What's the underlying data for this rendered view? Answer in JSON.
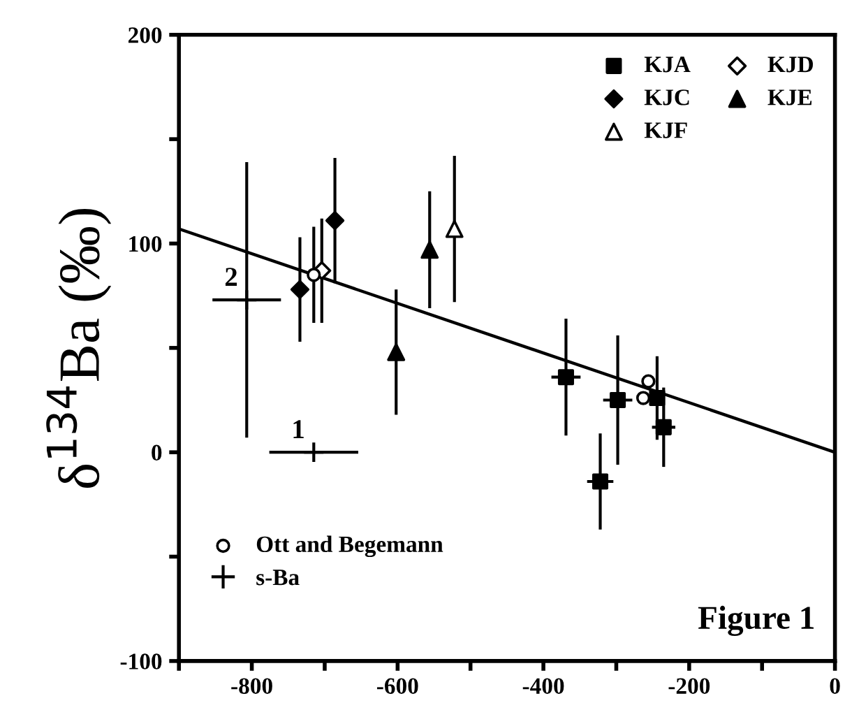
{
  "chart_data": {
    "type": "scatter",
    "ylabel": "δ$^{134}$Ba (‰)",
    "xlim": [
      -900,
      0
    ],
    "ylim": [
      -100,
      200
    ],
    "xticks": [
      {
        "value": -900,
        "label": null
      },
      -800,
      {
        "value": -700,
        "label": null
      },
      -600,
      {
        "value": -500,
        "label": null
      },
      -400,
      {
        "value": -300,
        "label": null
      },
      -200,
      {
        "value": -100,
        "label": null
      },
      0
    ],
    "yticks": [
      -100,
      {
        "value": -50,
        "label": null
      },
      0,
      {
        "value": 50,
        "label": null
      },
      100,
      {
        "value": 150,
        "label": null
      },
      200
    ],
    "grid": false,
    "legend": "top right",
    "annotations": [
      "Figure 1",
      {
        "text": "1",
        "x": -715,
        "y": 0
      },
      {
        "text": "2",
        "x": -807,
        "y": 73
      }
    ],
    "series": [
      {
        "name": "KJA",
        "color": "#000000",
        "marker": "square",
        "x": [
          -369,
          -298,
          -322,
          -244,
          -235
        ],
        "values": [
          36,
          25,
          -14,
          26,
          12
        ],
        "errors": [
          28,
          31,
          23,
          20,
          19
        ],
        "xerrors": [
          20,
          20,
          18,
          null,
          16
        ]
      },
      {
        "name": "KJD",
        "color": "#ffffff",
        "marker": "diamond",
        "x": [
          -704
        ],
        "values": [
          87
        ],
        "errors": [
          25
        ]
      },
      {
        "name": "KJC",
        "color": "#000000",
        "marker": "diamond",
        "x": [
          -734,
          -686
        ],
        "values": [
          78,
          111
        ],
        "errors": [
          25,
          30
        ]
      },
      {
        "name": "KJE",
        "color": "#000000",
        "marker": "triangle",
        "x": [
          -602,
          -556
        ],
        "values": [
          48,
          97
        ],
        "errors": [
          30,
          28
        ]
      },
      {
        "name": "KJF",
        "color": "#ffffff",
        "marker": "triangle",
        "x": [
          -522
        ],
        "values": [
          107
        ],
        "errors": [
          35
        ]
      },
      {
        "name": "Ott and Begemann",
        "color": "#ffffff",
        "marker": "circle",
        "x": [
          -715,
          -256,
          -263
        ],
        "values": [
          85,
          34,
          26
        ],
        "errors": [
          23,
          null,
          null
        ]
      },
      {
        "name": "s-Ba",
        "color": "#000000",
        "marker": "cross",
        "x": [
          -807,
          -715
        ],
        "values": [
          73,
          0
        ],
        "errors": [
          66,
          null
        ],
        "xerrors": [
          47,
          61
        ]
      },
      {
        "type": "line",
        "color": "#000000",
        "line_style": "solid",
        "x": [
          -900,
          0
        ],
        "values": [
          107,
          0
        ]
      }
    ]
  }
}
